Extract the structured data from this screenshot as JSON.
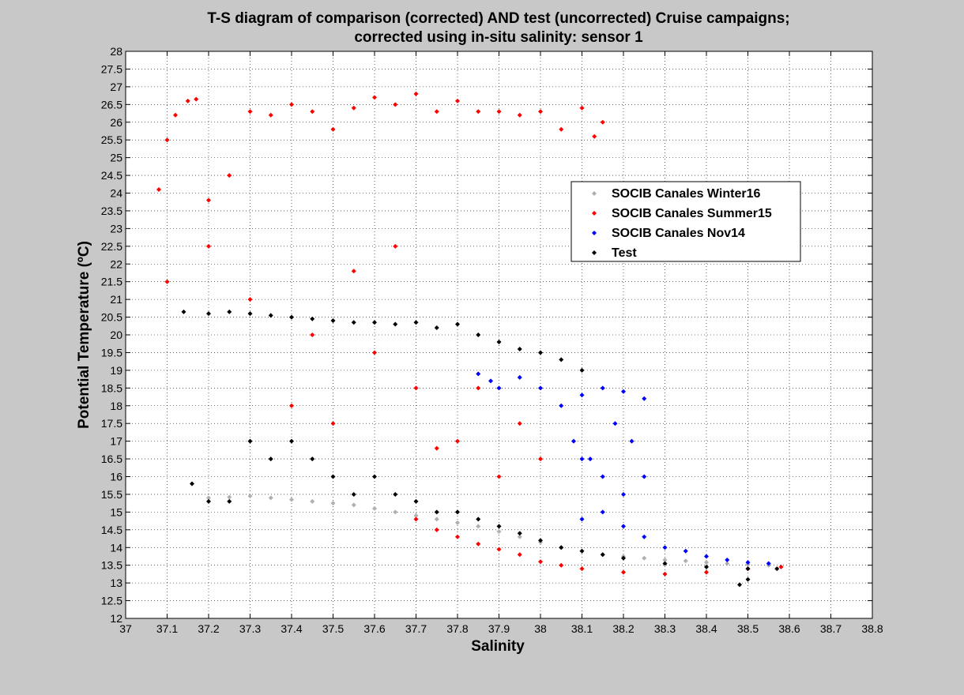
{
  "figure": {
    "title_lines": [
      "T-S diagram of comparison (corrected) AND test (uncorrected) Cruise campaigns;",
      "corrected using in-situ salinity: sensor 1"
    ],
    "background_color": "#c8c8c8",
    "axes_background_color": "#ffffff"
  },
  "chart_data": {
    "type": "scatter",
    "xlabel": "Salinity",
    "ylabel": "Potential Temperature (ºC)",
    "xlim": [
      37,
      38.8
    ],
    "ylim": [
      12,
      28
    ],
    "x_ticks": [
      "37",
      "37.1",
      "37.2",
      "37.3",
      "37.4",
      "37.5",
      "37.6",
      "37.7",
      "37.8",
      "37.9",
      "38",
      "38.1",
      "38.2",
      "38.3",
      "38.4",
      "38.5",
      "38.6",
      "38.7",
      "38.8"
    ],
    "y_ticks": [
      "12",
      "12.5",
      "13",
      "13.5",
      "14",
      "14.5",
      "15",
      "15.5",
      "16",
      "16.5",
      "17",
      "17.5",
      "18",
      "18.5",
      "19",
      "19.5",
      "20",
      "20.5",
      "21",
      "21.5",
      "22",
      "22.5",
      "23",
      "23.5",
      "24",
      "24.5",
      "25",
      "25.5",
      "26",
      "26.5",
      "27",
      "27.5",
      "28"
    ],
    "grid": "dotted",
    "legend_position": "upper right",
    "series": [
      {
        "name": "SOCIB Canales Winter16",
        "color": "#b0b0b0",
        "marker": "diamond",
        "points": [
          [
            37.2,
            15.4
          ],
          [
            37.25,
            15.42
          ],
          [
            37.3,
            15.45
          ],
          [
            37.35,
            15.4
          ],
          [
            37.4,
            15.35
          ],
          [
            37.45,
            15.3
          ],
          [
            37.5,
            15.25
          ],
          [
            37.55,
            15.2
          ],
          [
            37.6,
            15.1
          ],
          [
            37.65,
            15.0
          ],
          [
            37.7,
            14.9
          ],
          [
            37.75,
            14.8
          ],
          [
            37.8,
            14.7
          ],
          [
            37.85,
            14.6
          ],
          [
            37.9,
            14.45
          ],
          [
            37.95,
            14.3
          ],
          [
            38.0,
            14.15
          ],
          [
            38.05,
            14.0
          ],
          [
            38.1,
            13.9
          ],
          [
            38.15,
            13.8
          ],
          [
            38.2,
            13.75
          ],
          [
            38.25,
            13.7
          ],
          [
            38.3,
            13.65
          ],
          [
            38.35,
            13.62
          ],
          [
            38.4,
            13.58
          ],
          [
            38.45,
            13.55
          ],
          [
            38.5,
            13.52
          ],
          [
            38.55,
            13.5
          ]
        ]
      },
      {
        "name": "SOCIB Canales Summer15",
        "color": "#ff0000",
        "marker": "diamond",
        "points": [
          [
            37.08,
            24.1
          ],
          [
            37.1,
            25.5
          ],
          [
            37.12,
            26.2
          ],
          [
            37.15,
            26.6
          ],
          [
            37.17,
            26.65
          ],
          [
            37.2,
            23.8
          ],
          [
            37.25,
            24.5
          ],
          [
            37.3,
            26.3
          ],
          [
            37.35,
            26.2
          ],
          [
            37.4,
            26.5
          ],
          [
            37.45,
            26.3
          ],
          [
            37.5,
            25.8
          ],
          [
            37.55,
            26.4
          ],
          [
            37.6,
            26.7
          ],
          [
            37.65,
            26.5
          ],
          [
            37.7,
            26.8
          ],
          [
            37.75,
            26.3
          ],
          [
            37.8,
            26.6
          ],
          [
            37.85,
            26.3
          ],
          [
            37.9,
            26.3
          ],
          [
            37.95,
            26.2
          ],
          [
            38.0,
            26.3
          ],
          [
            38.05,
            25.8
          ],
          [
            38.1,
            26.4
          ],
          [
            38.13,
            25.6
          ],
          [
            38.15,
            26.0
          ],
          [
            37.1,
            21.5
          ],
          [
            37.2,
            22.5
          ],
          [
            37.3,
            21.0
          ],
          [
            37.4,
            18.0
          ],
          [
            37.45,
            20.0
          ],
          [
            37.5,
            17.5
          ],
          [
            37.55,
            21.8
          ],
          [
            37.6,
            19.5
          ],
          [
            37.65,
            22.5
          ],
          [
            37.7,
            18.5
          ],
          [
            37.75,
            16.8
          ],
          [
            37.8,
            17.0
          ],
          [
            37.85,
            18.5
          ],
          [
            37.9,
            16.0
          ],
          [
            37.95,
            17.5
          ],
          [
            38.0,
            16.5
          ],
          [
            37.7,
            14.8
          ],
          [
            37.75,
            14.5
          ],
          [
            37.8,
            14.3
          ],
          [
            37.85,
            14.1
          ],
          [
            37.9,
            13.95
          ],
          [
            37.95,
            13.8
          ],
          [
            38.0,
            13.6
          ],
          [
            38.05,
            13.5
          ],
          [
            38.1,
            13.4
          ],
          [
            38.2,
            13.3
          ],
          [
            38.3,
            13.25
          ],
          [
            38.4,
            13.3
          ],
          [
            38.5,
            13.4
          ],
          [
            38.58,
            13.45
          ]
        ]
      },
      {
        "name": "SOCIB Canales Nov14",
        "color": "#0000ff",
        "marker": "diamond",
        "points": [
          [
            37.85,
            18.9
          ],
          [
            37.88,
            18.7
          ],
          [
            37.9,
            18.5
          ],
          [
            37.95,
            18.8
          ],
          [
            38.0,
            18.5
          ],
          [
            38.05,
            18.0
          ],
          [
            38.08,
            17.0
          ],
          [
            38.1,
            18.3
          ],
          [
            38.12,
            16.5
          ],
          [
            38.15,
            18.5
          ],
          [
            38.18,
            17.5
          ],
          [
            38.2,
            18.4
          ],
          [
            38.22,
            17.0
          ],
          [
            38.25,
            18.2
          ],
          [
            38.25,
            16.0
          ],
          [
            38.2,
            15.5
          ],
          [
            38.15,
            15.0
          ],
          [
            38.1,
            14.8
          ],
          [
            38.1,
            16.5
          ],
          [
            38.15,
            16.0
          ],
          [
            38.2,
            14.6
          ],
          [
            38.25,
            14.3
          ],
          [
            38.3,
            14.0
          ],
          [
            38.35,
            13.9
          ],
          [
            38.4,
            13.75
          ],
          [
            38.45,
            13.65
          ],
          [
            38.5,
            13.58
          ],
          [
            38.55,
            13.55
          ]
        ]
      },
      {
        "name": "Test",
        "color": "#000000",
        "marker": "diamond",
        "points": [
          [
            37.14,
            20.65
          ],
          [
            37.2,
            20.6
          ],
          [
            37.25,
            20.65
          ],
          [
            37.3,
            20.6
          ],
          [
            37.35,
            20.55
          ],
          [
            37.4,
            20.5
          ],
          [
            37.45,
            20.45
          ],
          [
            37.5,
            20.4
          ],
          [
            37.55,
            20.35
          ],
          [
            37.6,
            20.35
          ],
          [
            37.65,
            20.3
          ],
          [
            37.7,
            20.35
          ],
          [
            37.75,
            20.2
          ],
          [
            37.8,
            20.3
          ],
          [
            37.85,
            20.0
          ],
          [
            37.9,
            19.8
          ],
          [
            37.95,
            19.6
          ],
          [
            38.0,
            19.5
          ],
          [
            38.05,
            19.3
          ],
          [
            38.1,
            19.0
          ],
          [
            37.16,
            15.8
          ],
          [
            37.2,
            15.3
          ],
          [
            37.25,
            15.3
          ],
          [
            37.3,
            17.0
          ],
          [
            37.35,
            16.5
          ],
          [
            37.4,
            17.0
          ],
          [
            37.45,
            16.5
          ],
          [
            37.5,
            16.0
          ],
          [
            37.55,
            15.5
          ],
          [
            37.6,
            16.0
          ],
          [
            37.65,
            15.5
          ],
          [
            37.7,
            15.3
          ],
          [
            37.75,
            15.0
          ],
          [
            37.8,
            15.0
          ],
          [
            37.85,
            14.8
          ],
          [
            37.9,
            14.6
          ],
          [
            37.95,
            14.4
          ],
          [
            38.0,
            14.2
          ],
          [
            38.05,
            14.0
          ],
          [
            38.1,
            13.9
          ],
          [
            38.15,
            13.8
          ],
          [
            38.2,
            13.7
          ],
          [
            38.3,
            13.55
          ],
          [
            38.4,
            13.45
          ],
          [
            38.5,
            13.4
          ],
          [
            38.57,
            13.4
          ],
          [
            38.5,
            13.1
          ],
          [
            38.48,
            12.95
          ]
        ]
      }
    ]
  }
}
